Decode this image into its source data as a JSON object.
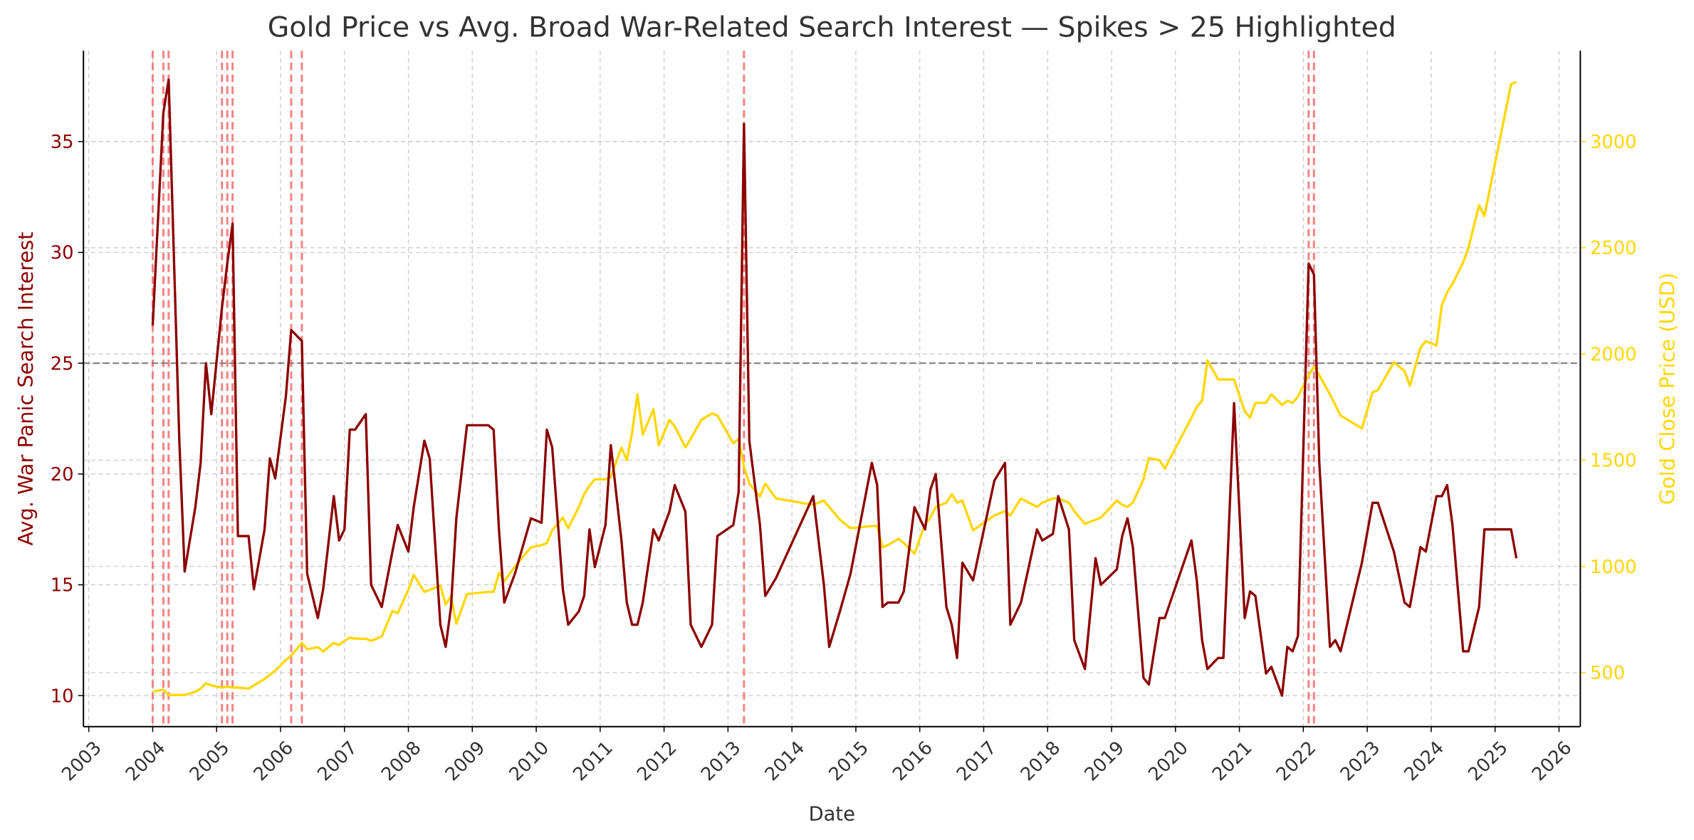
{
  "chart_data": {
    "type": "line",
    "title": "Gold Price vs Avg. Broad War-Related Search Interest — Spikes > 25 Highlighted",
    "xlabel": "Date",
    "ylabel": "Avg. War Panic Search Interest",
    "y2label": "Gold Close Price (USD)",
    "threshold": 25,
    "threshold_color": "#808080",
    "spike_color": "#f07070",
    "x": [
      "2004-01",
      "2004-03",
      "2004-04",
      "2004-06",
      "2004-07",
      "2004-09",
      "2004-10",
      "2004-11",
      "2004-12",
      "2005-02",
      "2005-03",
      "2005-04",
      "2005-05",
      "2005-07",
      "2005-08",
      "2005-10",
      "2005-11",
      "2005-12",
      "2006-02",
      "2006-03",
      "2006-05",
      "2006-06",
      "2006-08",
      "2006-09",
      "2006-11",
      "2006-12",
      "2007-01",
      "2007-02",
      "2007-03",
      "2007-05",
      "2007-06",
      "2007-08",
      "2007-10",
      "2007-11",
      "2008-01",
      "2008-02",
      "2008-04",
      "2008-05",
      "2008-07",
      "2008-08",
      "2008-09",
      "2008-10",
      "2008-12",
      "2009-04",
      "2009-05",
      "2009-06",
      "2009-07",
      "2009-09",
      "2009-12",
      "2010-02",
      "2010-03",
      "2010-04",
      "2010-06",
      "2010-07",
      "2010-09",
      "2010-10",
      "2010-11",
      "2010-12",
      "2011-02",
      "2011-03",
      "2011-05",
      "2011-06",
      "2011-07",
      "2011-08",
      "2011-09",
      "2011-11",
      "2011-12",
      "2012-02",
      "2012-03",
      "2012-05",
      "2012-06",
      "2012-08",
      "2012-10",
      "2012-11",
      "2013-02",
      "2013-03",
      "2013-04",
      "2013-05",
      "2013-07",
      "2013-08",
      "2013-10",
      "2014-05",
      "2014-07",
      "2014-08",
      "2014-10",
      "2014-12",
      "2015-04",
      "2015-05",
      "2015-06",
      "2015-07",
      "2015-09",
      "2015-10",
      "2015-12",
      "2016-02",
      "2016-03",
      "2016-04",
      "2016-06",
      "2016-07",
      "2016-08",
      "2016-09",
      "2016-11",
      "2017-03",
      "2017-05",
      "2017-06",
      "2017-08",
      "2017-11",
      "2017-12",
      "2018-02",
      "2018-03",
      "2018-05",
      "2018-06",
      "2018-08",
      "2018-10",
      "2018-11",
      "2019-02",
      "2019-03",
      "2019-04",
      "2019-05",
      "2019-07",
      "2019-08",
      "2019-10",
      "2019-11",
      "2020-04",
      "2020-05",
      "2020-06",
      "2020-07",
      "2020-09",
      "2020-10",
      "2020-12",
      "2021-02",
      "2021-03",
      "2021-04",
      "2021-06",
      "2021-07",
      "2021-09",
      "2021-10",
      "2021-11",
      "2021-12",
      "2022-02",
      "2022-03",
      "2022-04",
      "2022-06",
      "2022-07",
      "2022-08",
      "2022-12",
      "2023-02",
      "2023-03",
      "2023-06",
      "2023-08",
      "2023-09",
      "2023-11",
      "2023-12",
      "2024-02",
      "2024-03",
      "2024-04",
      "2024-05",
      "2024-07",
      "2024-08",
      "2024-10",
      "2024-11",
      "2025-04",
      "2025-05"
    ],
    "series": [
      {
        "color": "#8b0000",
        "values": [
          26.7,
          36.3,
          37.8,
          21.5,
          15.6,
          18.5,
          20.5,
          25.0,
          22.7,
          27.5,
          29.5,
          31.3,
          17.2,
          17.2,
          14.8,
          17.5,
          20.7,
          19.8,
          23.5,
          26.5,
          26.0,
          15.5,
          13.5,
          14.8,
          19.0,
          17.0,
          17.5,
          22.0,
          22.0,
          22.7,
          15.0,
          14.0,
          16.5,
          17.7,
          16.5,
          18.5,
          21.5,
          20.7,
          13.2,
          12.2,
          14.0,
          18.0,
          22.2,
          22.2,
          22.0,
          17.5,
          14.2,
          15.5,
          18.0,
          17.8,
          22.0,
          21.2,
          14.8,
          13.2,
          13.8,
          14.5,
          17.5,
          15.8,
          17.7,
          21.3,
          17.0,
          14.2,
          13.2,
          13.2,
          14.2,
          17.5,
          17.0,
          18.3,
          19.5,
          18.3,
          13.2,
          12.2,
          13.2,
          17.2,
          17.7,
          19.2,
          35.8,
          21.5,
          17.7,
          14.5,
          15.3,
          19.0,
          15.0,
          12.2,
          13.8,
          15.5,
          20.5,
          19.5,
          14.0,
          14.2,
          14.2,
          14.7,
          18.5,
          17.5,
          19.3,
          20.0,
          14.0,
          13.2,
          11.7,
          16.0,
          15.2,
          19.7,
          20.5,
          13.2,
          14.2,
          17.5,
          17.0,
          17.3,
          19.0,
          17.5,
          12.5,
          11.2,
          16.2,
          15.0,
          15.7,
          17.2,
          18.0,
          16.7,
          10.8,
          10.5,
          13.5,
          13.5,
          17.0,
          15.2,
          12.5,
          11.2,
          11.7,
          11.7,
          23.2,
          13.5,
          14.7,
          14.5,
          11.0,
          11.3,
          10.0,
          12.2,
          12.0,
          12.7,
          29.5,
          29.0,
          20.5,
          12.2,
          12.5,
          12.0,
          16.0,
          18.7,
          18.7,
          16.5,
          14.2,
          14.0,
          16.7,
          16.5,
          19.0,
          19.0,
          19.5,
          17.7,
          12.0,
          12.0,
          14.0,
          17.5,
          17.5,
          16.2
        ]
      },
      {
        "color": "#ffd700",
        "axis": "y2",
        "values": [
          410,
          420,
          395,
          395,
          395,
          410,
          425,
          450,
          440,
          430,
          435,
          430,
          430,
          425,
          440,
          470,
          490,
          510,
          560,
          580,
          640,
          610,
          620,
          600,
          640,
          630,
          650,
          665,
          660,
          660,
          650,
          670,
          790,
          780,
          890,
          960,
          880,
          890,
          910,
          820,
          860,
          730,
          870,
          880,
          880,
          970,
          930,
          1000,
          1090,
          1100,
          1110,
          1170,
          1230,
          1180,
          1280,
          1340,
          1380,
          1410,
          1410,
          1420,
          1560,
          1500,
          1630,
          1810,
          1620,
          1740,
          1570,
          1690,
          1660,
          1560,
          1600,
          1690,
          1720,
          1710,
          1580,
          1600,
          1470,
          1390,
          1330,
          1390,
          1320,
          1290,
          1310,
          1280,
          1220,
          1180,
          1190,
          1190,
          1090,
          1100,
          1130,
          1110,
          1060,
          1200,
          1230,
          1280,
          1300,
          1340,
          1300,
          1310,
          1170,
          1240,
          1260,
          1240,
          1320,
          1280,
          1300,
          1320,
          1320,
          1300,
          1260,
          1200,
          1220,
          1230,
          1310,
          1290,
          1280,
          1300,
          1410,
          1510,
          1500,
          1460,
          1700,
          1750,
          1780,
          1970,
          1880,
          1880,
          1880,
          1730,
          1700,
          1770,
          1770,
          1810,
          1760,
          1780,
          1770,
          1800,
          1900,
          1940,
          1900,
          1810,
          1760,
          1710,
          1650,
          1820,
          1830,
          1960,
          1920,
          1850,
          2030,
          2060,
          2040,
          2230,
          2290,
          2330,
          2430,
          2500,
          2700,
          2650,
          3270,
          3280
        ]
      }
    ],
    "xlim": [
      "2002-12",
      "2026-05"
    ],
    "xticks": [
      "2003",
      "2004",
      "2005",
      "2006",
      "2007",
      "2008",
      "2009",
      "2010",
      "2011",
      "2012",
      "2013",
      "2014",
      "2015",
      "2016",
      "2017",
      "2018",
      "2019",
      "2020",
      "2021",
      "2022",
      "2023",
      "2024",
      "2025",
      "2026"
    ],
    "ylim": [
      8.6,
      39.1
    ],
    "yticks": [
      10,
      15,
      20,
      25,
      30,
      35
    ],
    "y2lim": [
      246,
      3427
    ],
    "y2ticks": [
      500,
      1000,
      1500,
      2000,
      2500,
      3000
    ],
    "grid": true
  }
}
